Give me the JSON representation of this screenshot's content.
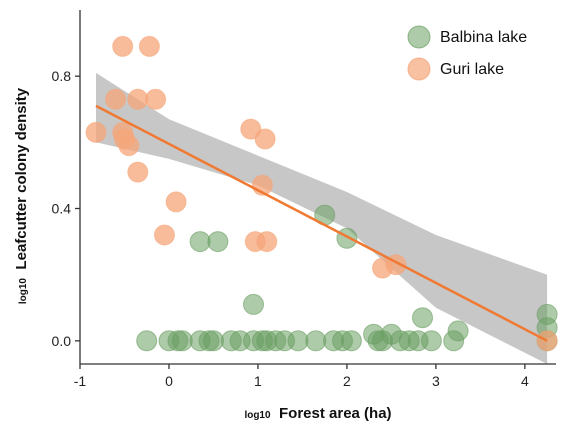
{
  "chart_data": {
    "type": "scatter",
    "xlabel_prefix": "log10",
    "xlabel_main": "Forest area (ha)",
    "ylabel_prefix": "log10",
    "ylabel_main": "Leafcutter colony density",
    "xlim": [
      -1.0,
      4.35
    ],
    "ylim": [
      -0.07,
      1.0
    ],
    "x_ticks": [
      -1,
      0,
      1,
      2,
      3,
      4
    ],
    "x_tick_labels": [
      "-1",
      "0",
      "1",
      "2",
      "3",
      "4"
    ],
    "y_ticks": [
      0.0,
      0.4,
      0.8
    ],
    "y_tick_labels": [
      "0.0",
      "0.4",
      "0.8"
    ],
    "legend_position": "top-right",
    "series": [
      {
        "name": "Balbina lake",
        "color": "#6a9e62",
        "points": [
          {
            "x": -0.25,
            "y": 0.0
          },
          {
            "x": 0.0,
            "y": 0.0
          },
          {
            "x": 0.1,
            "y": 0.0
          },
          {
            "x": 0.15,
            "y": 0.0
          },
          {
            "x": 0.35,
            "y": 0.0
          },
          {
            "x": 0.45,
            "y": 0.0
          },
          {
            "x": 0.5,
            "y": 0.0
          },
          {
            "x": 0.7,
            "y": 0.0
          },
          {
            "x": 0.8,
            "y": 0.0
          },
          {
            "x": 0.95,
            "y": 0.0
          },
          {
            "x": 1.05,
            "y": 0.0
          },
          {
            "x": 1.1,
            "y": 0.0
          },
          {
            "x": 1.2,
            "y": 0.0
          },
          {
            "x": 1.3,
            "y": 0.0
          },
          {
            "x": 1.45,
            "y": 0.0
          },
          {
            "x": 1.65,
            "y": 0.0
          },
          {
            "x": 1.85,
            "y": 0.0
          },
          {
            "x": 1.95,
            "y": 0.0
          },
          {
            "x": 2.05,
            "y": 0.0
          },
          {
            "x": 2.35,
            "y": 0.0
          },
          {
            "x": 2.4,
            "y": 0.0
          },
          {
            "x": 2.6,
            "y": 0.0
          },
          {
            "x": 2.7,
            "y": 0.0
          },
          {
            "x": 2.8,
            "y": 0.0
          },
          {
            "x": 2.95,
            "y": 0.0
          },
          {
            "x": 3.2,
            "y": 0.0
          },
          {
            "x": 4.25,
            "y": 0.0
          },
          {
            "x": 0.35,
            "y": 0.3
          },
          {
            "x": 0.55,
            "y": 0.3
          },
          {
            "x": 0.95,
            "y": 0.11
          },
          {
            "x": 1.75,
            "y": 0.38
          },
          {
            "x": 2.0,
            "y": 0.31
          },
          {
            "x": 2.3,
            "y": 0.02
          },
          {
            "x": 2.5,
            "y": 0.02
          },
          {
            "x": 2.85,
            "y": 0.07
          },
          {
            "x": 3.25,
            "y": 0.03
          },
          {
            "x": 4.25,
            "y": 0.04
          },
          {
            "x": 4.25,
            "y": 0.08
          }
        ]
      },
      {
        "name": "Guri lake",
        "color": "#f5a679",
        "points": [
          {
            "x": -0.82,
            "y": 0.63
          },
          {
            "x": -0.6,
            "y": 0.73
          },
          {
            "x": -0.52,
            "y": 0.89
          },
          {
            "x": -0.52,
            "y": 0.63
          },
          {
            "x": -0.5,
            "y": 0.61
          },
          {
            "x": -0.45,
            "y": 0.59
          },
          {
            "x": -0.35,
            "y": 0.73
          },
          {
            "x": -0.35,
            "y": 0.51
          },
          {
            "x": -0.22,
            "y": 0.89
          },
          {
            "x": -0.15,
            "y": 0.73
          },
          {
            "x": -0.05,
            "y": 0.32
          },
          {
            "x": 0.08,
            "y": 0.42
          },
          {
            "x": 0.92,
            "y": 0.64
          },
          {
            "x": 0.97,
            "y": 0.3
          },
          {
            "x": 1.05,
            "y": 0.47
          },
          {
            "x": 1.08,
            "y": 0.61
          },
          {
            "x": 1.1,
            "y": 0.3
          },
          {
            "x": 2.4,
            "y": 0.22
          },
          {
            "x": 2.55,
            "y": 0.23
          },
          {
            "x": 4.25,
            "y": 0.0
          }
        ]
      }
    ],
    "regression": {
      "color": "#f07a33",
      "x": [
        -0.82,
        4.25
      ],
      "y": [
        0.71,
        0.0
      ],
      "band_color": "#b4b4b4",
      "band": [
        {
          "x": -0.82,
          "lower": 0.6,
          "upper": 0.81
        },
        {
          "x": 0.0,
          "lower": 0.55,
          "upper": 0.67
        },
        {
          "x": 1.0,
          "lower": 0.47,
          "upper": 0.56
        },
        {
          "x": 2.0,
          "lower": 0.34,
          "upper": 0.45
        },
        {
          "x": 3.0,
          "lower": 0.1,
          "upper": 0.32
        },
        {
          "x": 4.25,
          "lower": -0.2,
          "upper": 0.2
        }
      ]
    }
  }
}
